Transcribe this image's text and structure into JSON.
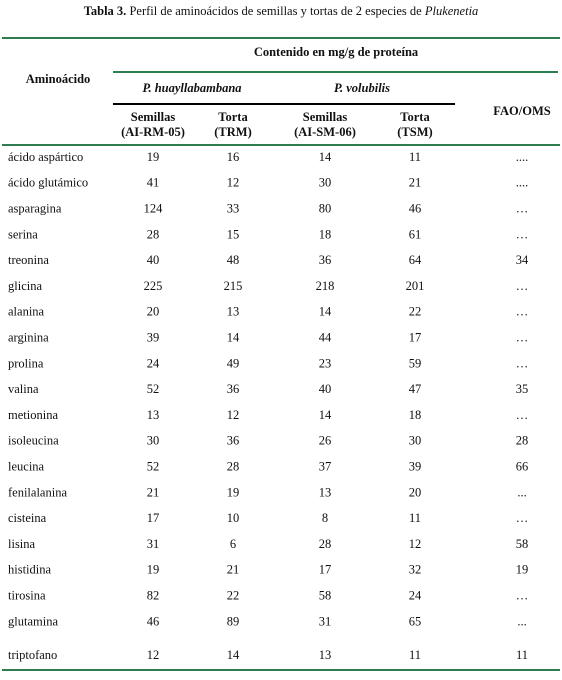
{
  "title": {
    "label": "Tabla 3.",
    "text": "Perfil de aminoácidos de semillas y tortas de 2 especies de",
    "genus": "Plukenetia"
  },
  "header": {
    "first": "Aminoácido",
    "group": "Contenido en mg/g de proteína",
    "species": [
      "P. huayllabambana",
      "P. volubilis"
    ],
    "reference": "FAO/OMS",
    "columns": [
      [
        "Semillas",
        "(AI-RM-05)"
      ],
      [
        "Torta",
        "(TRM)"
      ],
      [
        "Semillas",
        "(AI-SM-06)"
      ],
      [
        "Torta",
        "(TSM)"
      ]
    ]
  },
  "table": {
    "rows": [
      [
        "ácido aspártico",
        19,
        16,
        14,
        11,
        "...."
      ],
      [
        "ácido glutámico",
        41,
        12,
        30,
        21,
        "...."
      ],
      [
        "asparagina",
        124,
        33,
        80,
        46,
        "…"
      ],
      [
        "serina",
        28,
        15,
        18,
        61,
        "…"
      ],
      [
        "treonina",
        40,
        48,
        36,
        64,
        34
      ],
      [
        "glicina",
        225,
        215,
        218,
        201,
        "…"
      ],
      [
        "alanina",
        20,
        13,
        14,
        22,
        "…"
      ],
      [
        "arginina",
        39,
        14,
        44,
        17,
        "…"
      ],
      [
        "prolina",
        24,
        49,
        23,
        59,
        "…"
      ],
      [
        "valina",
        52,
        36,
        40,
        47,
        35
      ],
      [
        "metionina",
        13,
        12,
        14,
        18,
        "…"
      ],
      [
        "isoleucina",
        30,
        36,
        26,
        30,
        28
      ],
      [
        "leucina",
        52,
        28,
        37,
        39,
        66
      ],
      [
        "fenilalanina",
        21,
        19,
        13,
        20,
        "..."
      ],
      [
        "cisteina",
        17,
        10,
        8,
        11,
        "…"
      ],
      [
        "lisina",
        31,
        6,
        28,
        12,
        58
      ],
      [
        "histidina",
        19,
        21,
        17,
        32,
        19
      ],
      [
        "tirosina",
        82,
        22,
        58,
        24,
        "…"
      ],
      [
        "glutamina",
        46,
        89,
        31,
        65,
        "..."
      ],
      [
        "triptofano",
        12,
        14,
        13,
        11,
        11
      ]
    ]
  }
}
